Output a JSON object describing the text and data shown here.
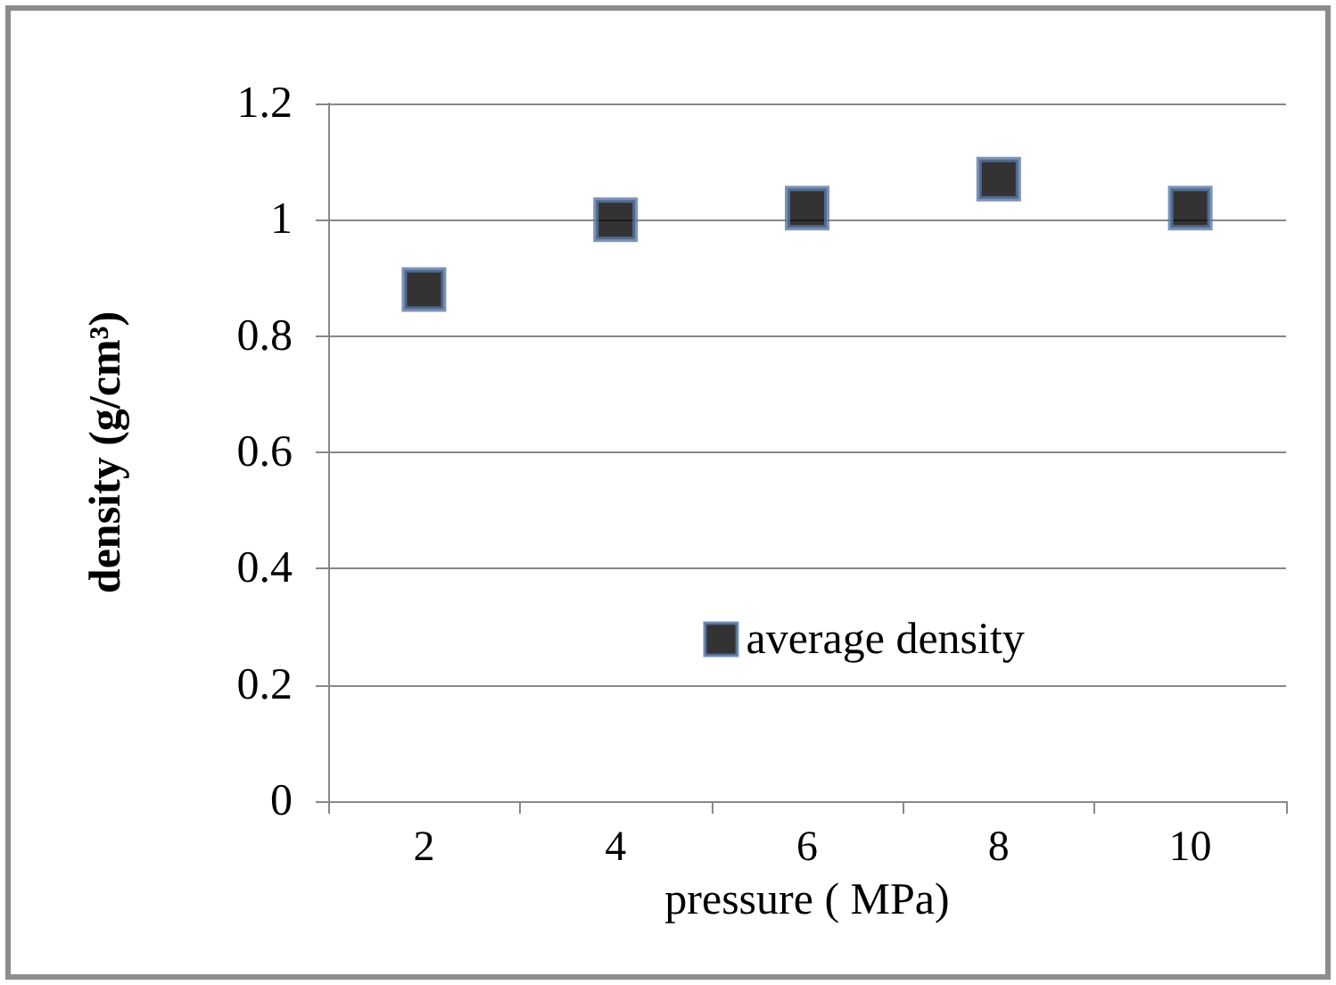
{
  "chart_data": {
    "type": "scatter",
    "xlabel": "pressure ( MPa)",
    "ylabel": "density (g/cm³)",
    "categories": [
      "2",
      "4",
      "6",
      "8",
      "10"
    ],
    "series": [
      {
        "name": "average density",
        "color": "#000000",
        "values": [
          0.88,
          1.0,
          1.02,
          1.07,
          1.02
        ]
      }
    ],
    "ylim": [
      0,
      1.2
    ],
    "yticks": [
      0,
      0.2,
      0.4,
      0.6,
      0.8,
      1,
      1.2
    ],
    "grid": "y",
    "legend": "bottom right",
    "marker": "square"
  }
}
